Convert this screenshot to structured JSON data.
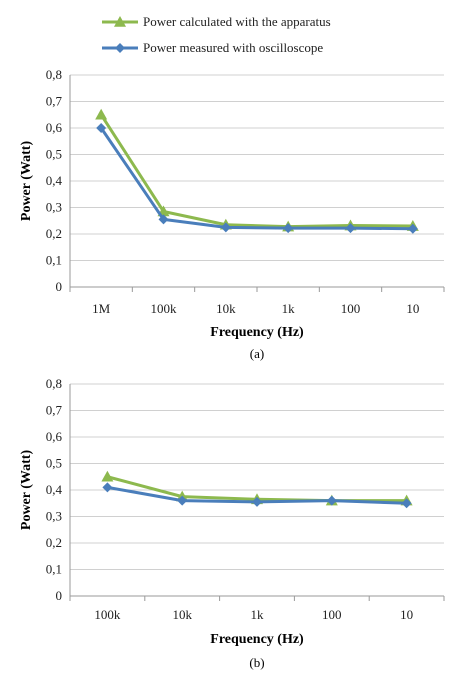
{
  "legend": [
    {
      "label": "Power calculated with the apparatus",
      "color": "#8DB94E",
      "marker": "triangle"
    },
    {
      "label": "Power measured with oscilloscope",
      "color": "#4A7EBB",
      "marker": "diamond"
    }
  ],
  "chart_data": [
    {
      "type": "line",
      "caption": "(a)",
      "xlabel": "Frequency (Hz)",
      "ylabel": "Power (Watt)",
      "ylim": [
        0,
        0.8
      ],
      "yticks": [
        "0",
        "0,1",
        "0,2",
        "0,3",
        "0,4",
        "0,5",
        "0,6",
        "0,7",
        "0,8"
      ],
      "categories": [
        "1M",
        "100k",
        "10k",
        "1k",
        "100",
        "10"
      ],
      "grid": true,
      "series": [
        {
          "name": "Power calculated with the apparatus",
          "color": "#8DB94E",
          "marker": "triangle",
          "values": [
            0.65,
            0.285,
            0.235,
            0.228,
            0.232,
            0.23
          ]
        },
        {
          "name": "Power measured with oscilloscope",
          "color": "#4A7EBB",
          "marker": "diamond",
          "values": [
            0.6,
            0.255,
            0.225,
            0.222,
            0.222,
            0.22
          ]
        }
      ]
    },
    {
      "type": "line",
      "caption": "(b)",
      "xlabel": "Frequency (Hz)",
      "ylabel": "Power (Watt)",
      "ylim": [
        0,
        0.8
      ],
      "yticks": [
        "0",
        "0,1",
        "0,2",
        "0,3",
        "0,4",
        "0,5",
        "0,6",
        "0,7",
        "0,8"
      ],
      "categories": [
        "100k",
        "10k",
        "1k",
        "100",
        "10"
      ],
      "grid": true,
      "series": [
        {
          "name": "Power calculated with the apparatus",
          "color": "#8DB94E",
          "marker": "triangle",
          "values": [
            0.45,
            0.375,
            0.365,
            0.36,
            0.36
          ]
        },
        {
          "name": "Power measured with oscilloscope",
          "color": "#4A7EBB",
          "marker": "diamond",
          "values": [
            0.41,
            0.36,
            0.355,
            0.36,
            0.35
          ]
        }
      ]
    }
  ]
}
